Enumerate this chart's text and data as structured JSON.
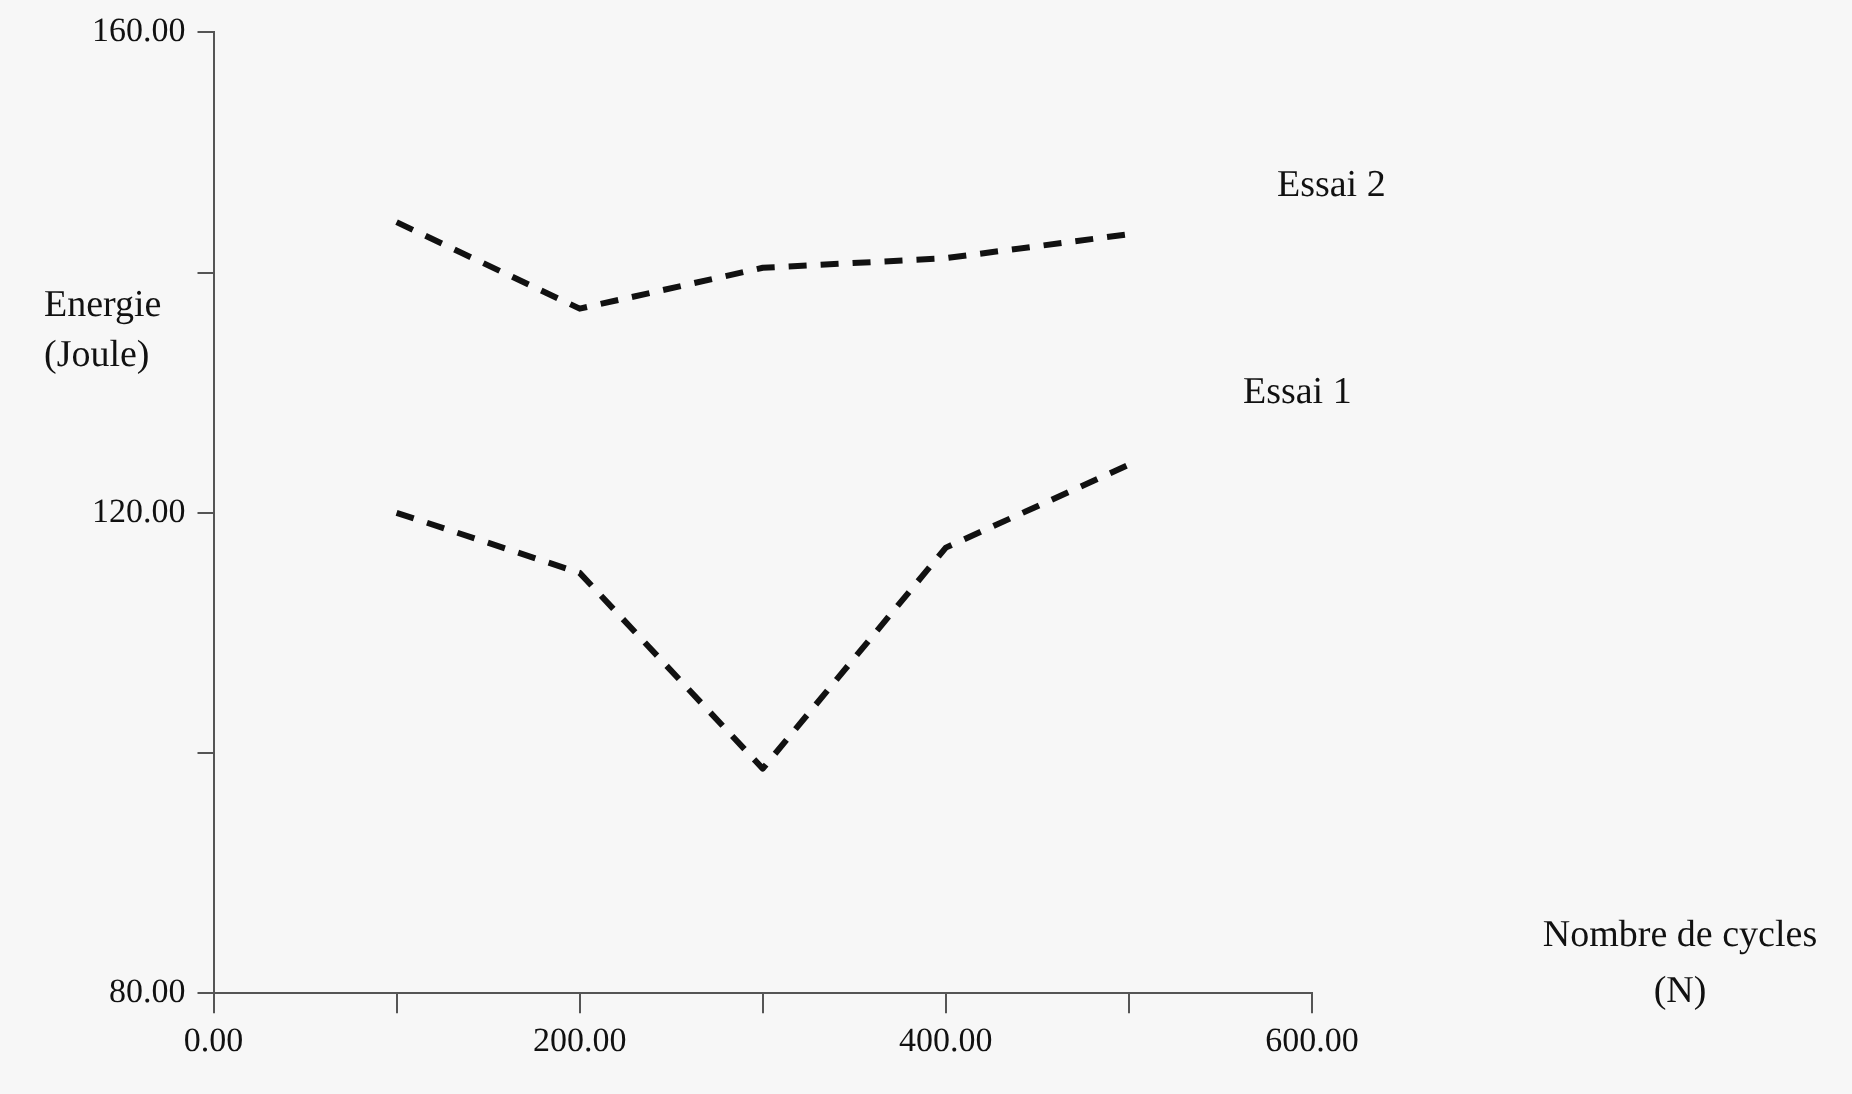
{
  "chart_data": {
    "type": "line",
    "xlabel": "Nombre de cycles\n(N)",
    "ylabel": "Energie\n(Joule)",
    "x": [
      100,
      200,
      300,
      400,
      500
    ],
    "series": [
      {
        "name": "Essai 2",
        "color": "#111111",
        "values": [
          144.2,
          137.0,
          140.4,
          141.2,
          143.2
        ]
      },
      {
        "name": "Essai 1",
        "color": "#111111",
        "values": [
          120.0,
          115.0,
          98.7,
          117.1,
          124.0
        ]
      }
    ],
    "xlim": [
      0,
      600
    ],
    "ylim": [
      80,
      160
    ],
    "xticks": [
      {
        "value": 0,
        "label": "0.00"
      },
      {
        "value": 100,
        "label": null
      },
      {
        "value": 200,
        "label": "200.00"
      },
      {
        "value": 300,
        "label": null
      },
      {
        "value": 400,
        "label": "400.00"
      },
      {
        "value": 500,
        "label": null
      },
      {
        "value": 600,
        "label": "600.00"
      }
    ],
    "yticks": [
      {
        "value": 80,
        "label": "80.00"
      },
      {
        "value": 100,
        "label": null
      },
      {
        "value": 120,
        "label": "120.00"
      },
      {
        "value": 140,
        "label": null
      },
      {
        "value": 160,
        "label": "160.00"
      }
    ],
    "grid": false,
    "legend": false,
    "marker": "none",
    "line_style": "dashed"
  }
}
